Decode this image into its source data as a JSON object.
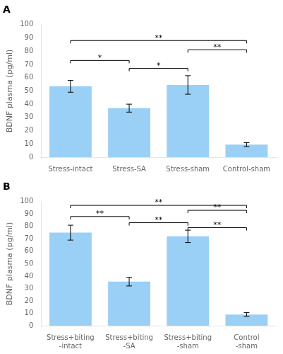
{
  "chart_data": [
    {
      "type": "bar",
      "title": "A",
      "categories": [
        "Stress-intact",
        "Stress-SA",
        "Stress-sham",
        "Control-sham"
      ],
      "values": [
        53.5,
        37.0,
        54.5,
        9.5
      ],
      "errors": [
        4.5,
        3.0,
        7.0,
        1.5
      ],
      "ylabel": "BDNF plasma (pg/ml)",
      "ylim": [
        0,
        100
      ],
      "yticks": [
        0,
        10,
        20,
        30,
        40,
        50,
        60,
        70,
        80,
        90,
        100
      ],
      "grid": false,
      "annotations": [
        {
          "from": "Stress-intact",
          "to": "Stress-SA",
          "y": 73,
          "text": "*"
        },
        {
          "from": "Stress-SA",
          "to": "Stress-sham",
          "y": 67,
          "text": "*"
        },
        {
          "from": "Stress-intact",
          "to": "Control-sham",
          "y": 88,
          "text": "**"
        },
        {
          "from": "Stress-sham",
          "to": "Control-sham",
          "y": 81,
          "text": "**"
        }
      ]
    },
    {
      "type": "bar",
      "title": "B",
      "categories": [
        "Stress+biting\n-intact",
        "Stress+biting\n-SA",
        "Stress+biting\n-sham",
        "Control\n-sham"
      ],
      "values": [
        75.0,
        35.5,
        72.0,
        9.0
      ],
      "errors": [
        6.0,
        3.5,
        5.0,
        1.5
      ],
      "ylabel": "BDNF plasma (pg/ml)",
      "ylim": [
        0,
        100
      ],
      "yticks": [
        0,
        10,
        20,
        30,
        40,
        50,
        60,
        70,
        80,
        90,
        100
      ],
      "grid": false,
      "annotations": [
        {
          "from": "Stress+biting\n-intact",
          "to": "Stress+biting\n-SA",
          "y": 88,
          "text": "**"
        },
        {
          "from": "Stress+biting\n-SA",
          "to": "Stress+biting\n-sham",
          "y": 83,
          "text": "**"
        },
        {
          "from": "Stress+biting\n-sham",
          "to": "Control\n-sham",
          "y": 79,
          "text": "**"
        },
        {
          "from": "Stress+biting\n-intact",
          "to": "Control\n-sham",
          "y": 97,
          "text": "**"
        },
        {
          "from": "Stress+biting\n-sham",
          "to": "Control\n-sham",
          "y": 93,
          "text": "**"
        }
      ]
    }
  ]
}
